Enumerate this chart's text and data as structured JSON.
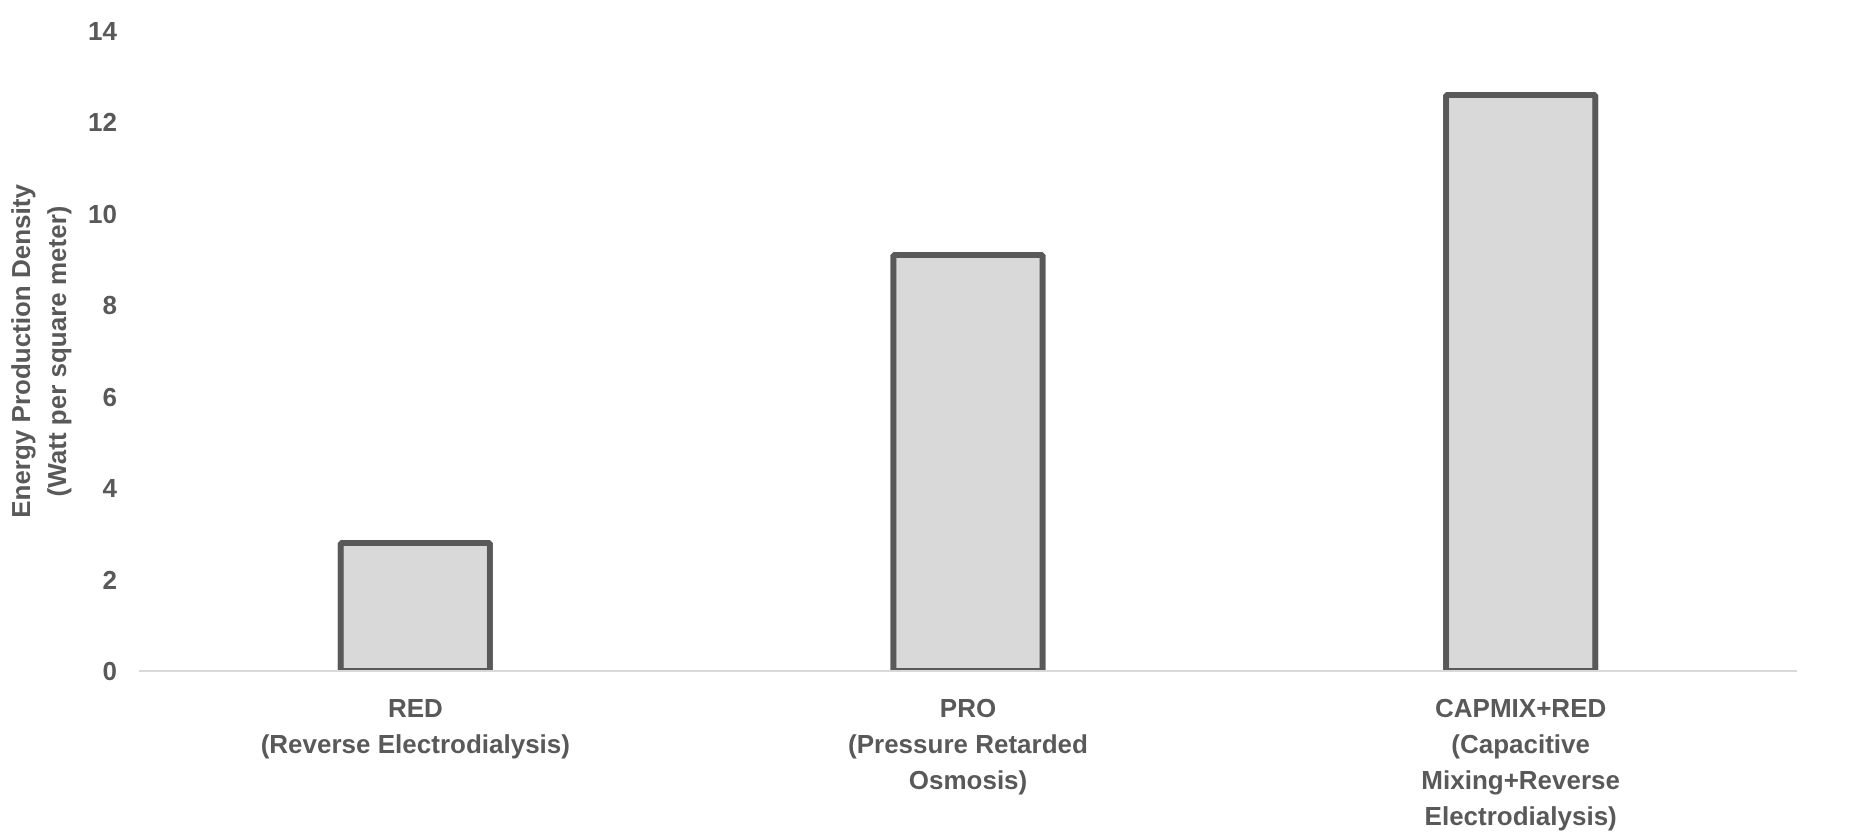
{
  "chart_data": {
    "type": "bar",
    "ylabel": "Energy Production Density\n(Watt per square meter)",
    "categories": [
      "RED\n(Reverse Electrodialysis)",
      "PRO\n(Pressure Retarded\nOsmosis)",
      "CAPMIX+RED\n(Capacitive\nMixing+Reverse\nElectrodialysis)"
    ],
    "values": [
      2.8,
      9.1,
      12.6
    ],
    "color": "#d9d9d9",
    "ylim": [
      0,
      14
    ],
    "yticks": [
      0,
      2,
      4,
      6,
      8,
      10,
      12,
      14
    ],
    "grid": false
  }
}
